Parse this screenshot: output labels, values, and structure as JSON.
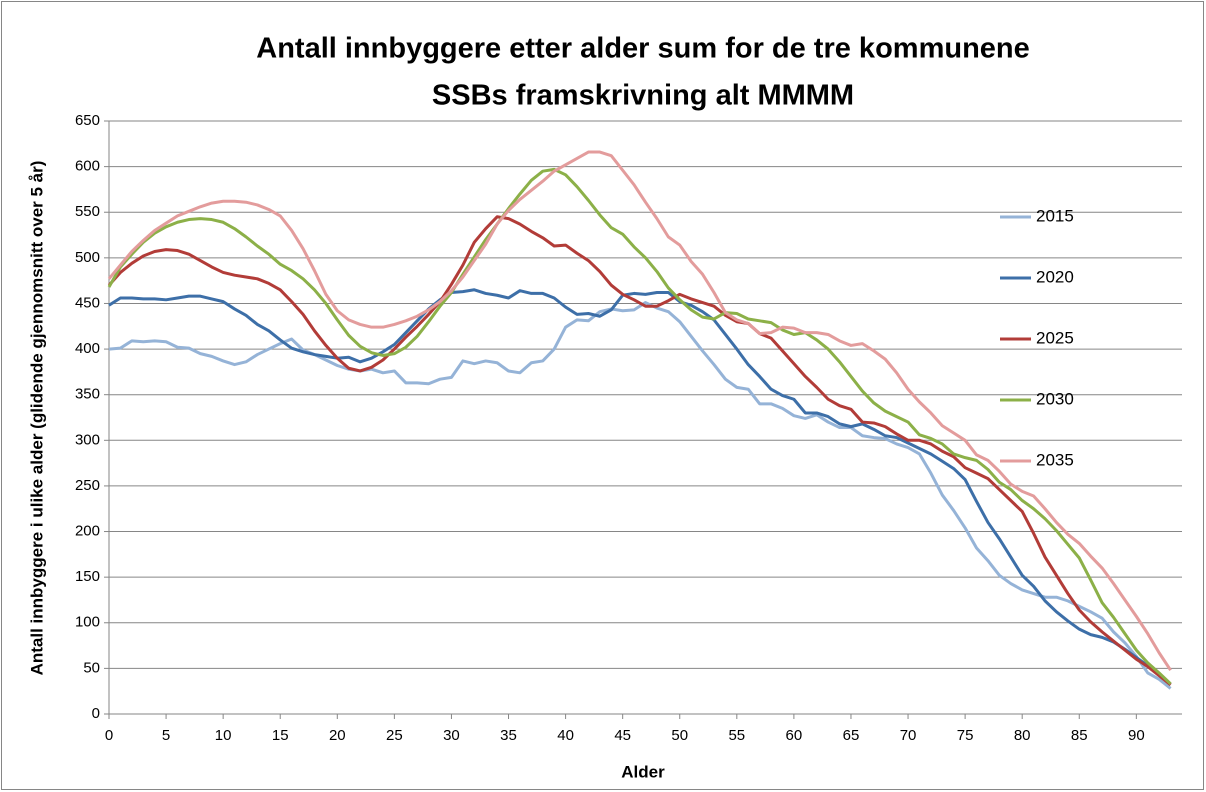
{
  "chart_data": {
    "type": "line",
    "title": "Antall innbyggere etter alder sum for de tre kommunene",
    "subtitle": "SSBs framskrivning alt MMMM",
    "x_label": "Alder",
    "y_label": "Antall innbyggere i ulike alder (glidende gjennomsnitt over 5 år)",
    "x": [
      0,
      1,
      2,
      3,
      4,
      5,
      6,
      7,
      8,
      9,
      10,
      11,
      12,
      13,
      14,
      15,
      16,
      17,
      18,
      19,
      20,
      21,
      22,
      23,
      24,
      25,
      26,
      27,
      28,
      29,
      30,
      31,
      32,
      33,
      34,
      35,
      36,
      37,
      38,
      39,
      40,
      41,
      42,
      43,
      44,
      45,
      46,
      47,
      48,
      49,
      50,
      51,
      52,
      53,
      54,
      55,
      56,
      57,
      58,
      59,
      60,
      61,
      62,
      63,
      64,
      65,
      66,
      67,
      68,
      69,
      70,
      71,
      72,
      73,
      74,
      75,
      76,
      77,
      78,
      79,
      80,
      81,
      82,
      83,
      84,
      85,
      86,
      87,
      88,
      89,
      90,
      91,
      92,
      93
    ],
    "xlim": [
      0,
      94
    ],
    "xticks": [
      0,
      5,
      10,
      15,
      20,
      25,
      30,
      35,
      40,
      45,
      50,
      55,
      60,
      65,
      70,
      75,
      80,
      85,
      90
    ],
    "ylim": [
      0,
      650
    ],
    "yticks": [
      0,
      50,
      100,
      150,
      200,
      250,
      300,
      350,
      400,
      450,
      500,
      550,
      600,
      650
    ],
    "grid": true,
    "legend": "right",
    "series": [
      {
        "name": "2015",
        "color": "#95b3d7",
        "values": [
          400,
          401,
          409,
          408,
          409,
          408,
          402,
          401,
          395,
          392,
          387,
          383,
          386,
          394,
          400,
          406,
          411,
          399,
          394,
          388,
          382,
          378,
          376,
          378,
          374,
          376,
          363,
          363,
          362,
          367,
          369,
          387,
          384,
          387,
          385,
          376,
          374,
          385,
          387,
          400,
          424,
          432,
          431,
          441,
          444,
          442,
          443,
          451,
          445,
          441,
          430,
          414,
          398,
          383,
          367,
          358,
          356,
          340,
          340,
          335,
          327,
          324,
          328,
          320,
          314,
          314,
          305,
          303,
          302,
          296,
          292,
          285,
          264,
          240,
          223,
          204,
          182,
          168,
          152,
          143,
          136,
          132,
          128,
          128,
          124,
          118,
          112,
          105,
          90,
          78,
          63,
          45,
          38,
          28
        ]
      },
      {
        "name": "2020",
        "color": "#3d6fa8",
        "values": [
          448,
          456,
          456,
          455,
          455,
          454,
          456,
          458,
          458,
          455,
          452,
          444,
          437,
          427,
          420,
          410,
          401,
          397,
          394,
          392,
          390,
          391,
          386,
          390,
          397,
          405,
          418,
          431,
          444,
          454,
          462,
          463,
          465,
          461,
          459,
          456,
          464,
          461,
          461,
          456,
          446,
          438,
          439,
          436,
          443,
          459,
          461,
          460,
          462,
          462,
          452,
          448,
          441,
          432,
          416,
          400,
          383,
          370,
          356,
          349,
          345,
          330,
          330,
          326,
          318,
          315,
          318,
          312,
          305,
          303,
          297,
          291,
          285,
          277,
          269,
          257,
          233,
          210,
          192,
          172,
          152,
          140,
          124,
          112,
          102,
          93,
          87,
          84,
          79,
          71,
          62,
          53,
          43,
          32
        ]
      },
      {
        "name": "2025",
        "color": "#b23c38",
        "values": [
          470,
          484,
          494,
          502,
          507,
          509,
          508,
          504,
          497,
          490,
          484,
          481,
          479,
          477,
          472,
          465,
          452,
          438,
          420,
          404,
          390,
          379,
          376,
          380,
          388,
          400,
          413,
          425,
          438,
          452,
          471,
          492,
          517,
          532,
          545,
          543,
          537,
          529,
          522,
          513,
          514,
          505,
          497,
          485,
          470,
          460,
          454,
          447,
          447,
          453,
          460,
          455,
          451,
          447,
          437,
          430,
          428,
          417,
          412,
          398,
          384,
          370,
          358,
          345,
          338,
          334,
          320,
          319,
          315,
          307,
          300,
          300,
          296,
          288,
          282,
          270,
          264,
          258,
          246,
          234,
          222,
          198,
          172,
          152,
          132,
          114,
          101,
          90,
          80,
          70,
          60,
          52,
          42,
          32
        ]
      },
      {
        "name": "2030",
        "color": "#8cb048",
        "values": [
          468,
          490,
          504,
          517,
          527,
          534,
          539,
          542,
          543,
          542,
          539,
          532,
          523,
          513,
          504,
          493,
          486,
          477,
          465,
          450,
          432,
          415,
          403,
          396,
          393,
          395,
          402,
          414,
          430,
          447,
          462,
          482,
          501,
          520,
          537,
          554,
          570,
          585,
          595,
          597,
          591,
          578,
          563,
          547,
          533,
          526,
          512,
          500,
          485,
          467,
          454,
          443,
          435,
          433,
          440,
          439,
          433,
          431,
          429,
          421,
          416,
          418,
          410,
          400,
          386,
          370,
          354,
          341,
          332,
          326,
          320,
          306,
          302,
          296,
          285,
          281,
          278,
          268,
          254,
          246,
          234,
          225,
          214,
          201,
          186,
          171,
          147,
          122,
          106,
          88,
          70,
          56,
          45,
          33
        ]
      },
      {
        "name": "2035",
        "color": "#e39c9c",
        "values": [
          477,
          492,
          507,
          519,
          530,
          538,
          546,
          551,
          556,
          560,
          562,
          562,
          561,
          558,
          553,
          546,
          530,
          510,
          486,
          460,
          442,
          432,
          427,
          424,
          424,
          427,
          431,
          436,
          443,
          452,
          464,
          479,
          497,
          515,
          537,
          552,
          564,
          574,
          584,
          595,
          602,
          609,
          616,
          616,
          612,
          596,
          580,
          561,
          543,
          523,
          514,
          496,
          482,
          462,
          440,
          432,
          428,
          417,
          418,
          424,
          423,
          418,
          418,
          416,
          409,
          404,
          406,
          398,
          389,
          374,
          356,
          342,
          330,
          316,
          308,
          300,
          284,
          278,
          266,
          252,
          244,
          239,
          225,
          210,
          197,
          187,
          173,
          160,
          143,
          125,
          107,
          88,
          67,
          48
        ]
      }
    ]
  }
}
